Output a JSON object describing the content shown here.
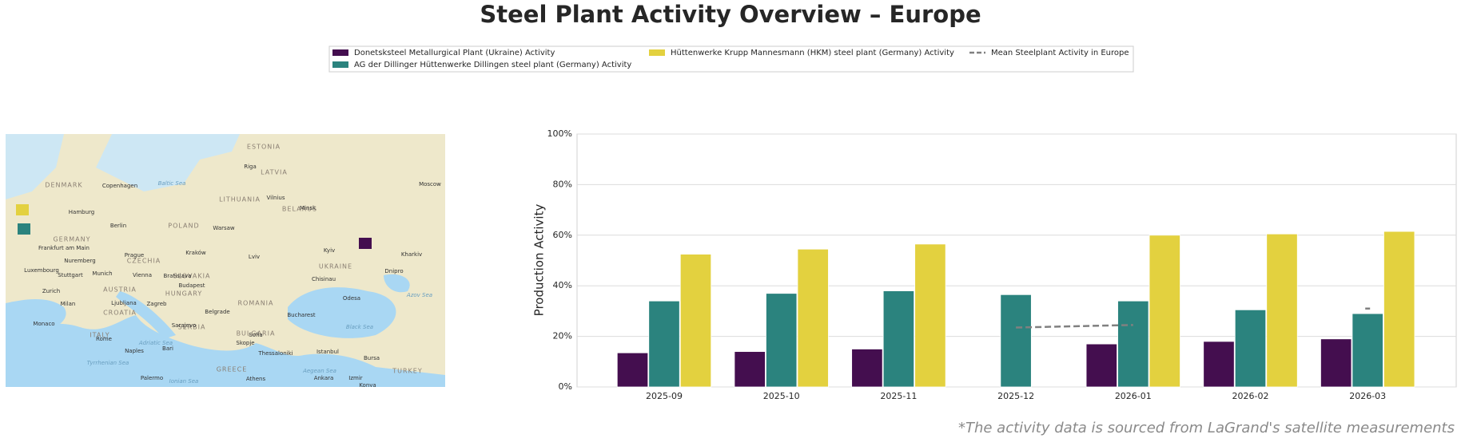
{
  "chart_data": {
    "type": "bar",
    "title": "Steel Plant Activity Overview – Europe",
    "y_label": "Production Activity",
    "footnote": "*The activity data is sourced from LaGrand's satellite measurements",
    "categories": [
      "2025-09",
      "2025-10",
      "2025-11",
      "2025-12",
      "2026-01",
      "2026-02",
      "2026-03"
    ],
    "series": [
      {
        "name": "Donetsksteel Metallurgical Plant (Ukraine) Activity",
        "color": "#440e4f",
        "values": [
          13.5,
          14,
          15,
          null,
          17,
          18,
          19
        ]
      },
      {
        "name": "AG der Dillinger Hüttenwerke Dillingen steel plant (Germany) Activity",
        "color": "#2b837e",
        "values": [
          34,
          37,
          38,
          36.5,
          34,
          30.5,
          29
        ]
      },
      {
        "name": "Hüttenwerke Krupp Mannesmann (HKM) steel plant (Germany) Activity",
        "color": "#e3d13f",
        "values": [
          52.5,
          54.5,
          56.5,
          null,
          60,
          60.5,
          61.5
        ]
      },
      {
        "name": "Mean Steelplant Activity in Europe",
        "color": "#808080",
        "type": "line",
        "dashed": true,
        "values": [
          null,
          null,
          null,
          23.5,
          24.5,
          null,
          31
        ]
      }
    ],
    "ylim": [
      0,
      100
    ],
    "yticks": [
      {
        "value": 0,
        "label": "0%"
      },
      {
        "value": 20,
        "label": "20%"
      },
      {
        "value": 40,
        "label": "40%"
      },
      {
        "value": 60,
        "label": "60%"
      },
      {
        "value": 80,
        "label": "80%"
      },
      {
        "value": 100,
        "label": "100%"
      }
    ],
    "grid": true,
    "legend": "top"
  },
  "map": {
    "labels": [
      {
        "text": "ESTONIA",
        "kind": "country"
      },
      {
        "text": "LATVIA",
        "kind": "country"
      },
      {
        "text": "LITHUANIA",
        "kind": "country"
      },
      {
        "text": "BELARUS",
        "kind": "country"
      },
      {
        "text": "POLAND",
        "kind": "country"
      },
      {
        "text": "GERMANY",
        "kind": "country"
      },
      {
        "text": "UKRAINE",
        "kind": "country"
      },
      {
        "text": "ROMANIA",
        "kind": "country"
      },
      {
        "text": "HUNGARY",
        "kind": "country"
      },
      {
        "text": "AUSTRIA",
        "kind": "country"
      },
      {
        "text": "SERBIA",
        "kind": "country"
      },
      {
        "text": "BULGARIA",
        "kind": "country"
      },
      {
        "text": "GREECE",
        "kind": "country"
      },
      {
        "text": "TURKEY",
        "kind": "country"
      },
      {
        "text": "DENMARK",
        "kind": "country"
      },
      {
        "text": "CZECHIA",
        "kind": "country"
      },
      {
        "text": "SLOVAKIA",
        "kind": "country"
      },
      {
        "text": "CROATIA",
        "kind": "country"
      },
      {
        "text": "ITALY",
        "kind": "country"
      },
      {
        "text": "Riga",
        "kind": "city"
      },
      {
        "text": "Vilnius",
        "kind": "city"
      },
      {
        "text": "Minsk",
        "kind": "city"
      },
      {
        "text": "Warsaw",
        "kind": "city"
      },
      {
        "text": "Berlin",
        "kind": "city"
      },
      {
        "text": "Hamburg",
        "kind": "city"
      },
      {
        "text": "Copenhagen",
        "kind": "city"
      },
      {
        "text": "Prague",
        "kind": "city"
      },
      {
        "text": "Vienna",
        "kind": "city"
      },
      {
        "text": "Bratislava",
        "kind": "city"
      },
      {
        "text": "Budapest",
        "kind": "city"
      },
      {
        "text": "Kraków",
        "kind": "city"
      },
      {
        "text": "Lviv",
        "kind": "city"
      },
      {
        "text": "Kyiv",
        "kind": "city"
      },
      {
        "text": "Kharkiv",
        "kind": "city"
      },
      {
        "text": "Dnipro",
        "kind": "city"
      },
      {
        "text": "Odesa",
        "kind": "city"
      },
      {
        "text": "Chisinau",
        "kind": "city"
      },
      {
        "text": "Bucharest",
        "kind": "city"
      },
      {
        "text": "Belgrade",
        "kind": "city"
      },
      {
        "text": "Zagreb",
        "kind": "city"
      },
      {
        "text": "Ljubljana",
        "kind": "city"
      },
      {
        "text": "Sarajevo",
        "kind": "city"
      },
      {
        "text": "Sofia",
        "kind": "city"
      },
      {
        "text": "Skopje",
        "kind": "city"
      },
      {
        "text": "Thessaloniki",
        "kind": "city"
      },
      {
        "text": "Istanbul",
        "kind": "city"
      },
      {
        "text": "Bursa",
        "kind": "city"
      },
      {
        "text": "Ankara",
        "kind": "city"
      },
      {
        "text": "Athens",
        "kind": "city"
      },
      {
        "text": "Izmir",
        "kind": "city"
      },
      {
        "text": "Konya",
        "kind": "city"
      },
      {
        "text": "Rome",
        "kind": "city"
      },
      {
        "text": "Naples",
        "kind": "city"
      },
      {
        "text": "Bari",
        "kind": "city"
      },
      {
        "text": "Palermo",
        "kind": "city"
      },
      {
        "text": "Milan",
        "kind": "city"
      },
      {
        "text": "Monaco",
        "kind": "city"
      },
      {
        "text": "Munich",
        "kind": "city"
      },
      {
        "text": "Stuttgart",
        "kind": "city"
      },
      {
        "text": "Frankfurt am Main",
        "kind": "city"
      },
      {
        "text": "Nuremberg",
        "kind": "city"
      },
      {
        "text": "Zurich",
        "kind": "city"
      },
      {
        "text": "Luxembourg",
        "kind": "city"
      },
      {
        "text": "Moscow",
        "kind": "city"
      },
      {
        "text": "Baltic Sea",
        "kind": "sea"
      },
      {
        "text": "Black Sea",
        "kind": "sea"
      },
      {
        "text": "Adriatic Sea",
        "kind": "sea"
      },
      {
        "text": "Tyrrhenian Sea",
        "kind": "sea"
      },
      {
        "text": "Ionian Sea",
        "kind": "sea"
      },
      {
        "text": "Aegean Sea",
        "kind": "sea"
      },
      {
        "text": "Azov Sea",
        "kind": "sea"
      }
    ]
  }
}
